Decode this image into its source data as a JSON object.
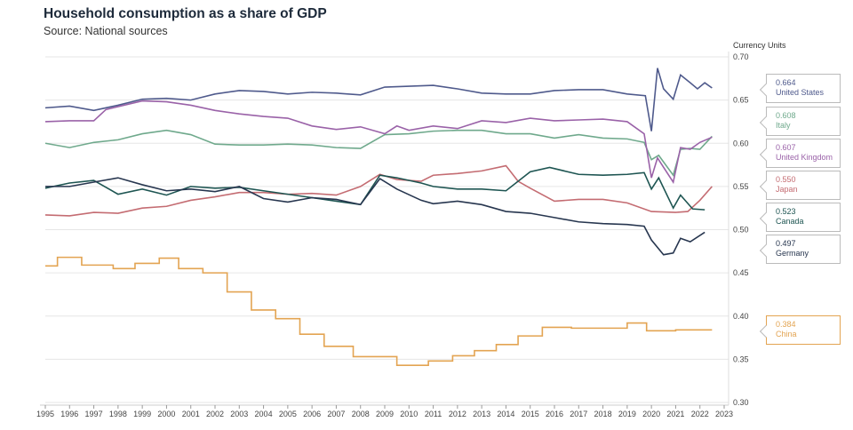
{
  "title": "Household consumption as a share of GDP",
  "subtitle": "Source: National sources",
  "chart_data": {
    "type": "line",
    "title": "Household consumption as a share of GDP",
    "yunit": "Currency Units",
    "ylim": [
      0.3,
      0.7
    ],
    "yticks": [
      "0.70",
      "0.65",
      "0.60",
      "0.55",
      "0.50",
      "0.45",
      "0.40",
      "0.35",
      "0.30"
    ],
    "xlim": [
      1995,
      2023
    ],
    "xticks": [
      "1995",
      "1996",
      "1997",
      "1998",
      "1999",
      "2000",
      "2001",
      "2002",
      "2003",
      "2004",
      "2005",
      "2006",
      "2007",
      "2008",
      "2009",
      "2010",
      "2011",
      "2012",
      "2013",
      "2014",
      "2015",
      "2016",
      "2017",
      "2018",
      "2019",
      "2020",
      "2021",
      "2022",
      "2023"
    ],
    "grid": true,
    "legend": "right end labels",
    "series": [
      {
        "name": "United States",
        "last": "0.664",
        "color": "#4f5a8c",
        "x": [
          1995,
          1996,
          1997,
          1998,
          1999,
          2000,
          2001,
          2002,
          2003,
          2004,
          2005,
          2006,
          2007,
          2008,
          2009,
          2010,
          2011,
          2012,
          2013,
          2014,
          2015,
          2016,
          2017,
          2018,
          2019,
          2019.75,
          2020,
          2020.25,
          2020.5,
          2020.9,
          2021.2,
          2021.6,
          2021.9,
          2022.2,
          2022.5
        ],
        "y": [
          0.641,
          0.643,
          0.638,
          0.644,
          0.651,
          0.652,
          0.65,
          0.657,
          0.661,
          0.66,
          0.657,
          0.659,
          0.658,
          0.656,
          0.665,
          0.666,
          0.667,
          0.663,
          0.658,
          0.657,
          0.657,
          0.661,
          0.662,
          0.662,
          0.657,
          0.655,
          0.614,
          0.687,
          0.663,
          0.651,
          0.679,
          0.67,
          0.663,
          0.67,
          0.664
        ]
      },
      {
        "name": "Italy",
        "last": "0.608",
        "color": "#6fa98c",
        "x": [
          1995,
          1996,
          1997,
          1998,
          1999,
          2000,
          2001,
          2002,
          2003,
          2004,
          2005,
          2006,
          2007,
          2008,
          2009,
          2010,
          2011,
          2012,
          2013,
          2014,
          2015,
          2016,
          2017,
          2018,
          2019,
          2019.7,
          2020,
          2020.3,
          2020.9,
          2021.2,
          2021.6,
          2022,
          2022.5
        ],
        "y": [
          0.6,
          0.595,
          0.601,
          0.604,
          0.611,
          0.615,
          0.61,
          0.599,
          0.598,
          0.598,
          0.599,
          0.598,
          0.595,
          0.594,
          0.61,
          0.611,
          0.614,
          0.615,
          0.615,
          0.611,
          0.611,
          0.606,
          0.61,
          0.606,
          0.605,
          0.601,
          0.581,
          0.586,
          0.563,
          0.593,
          0.594,
          0.593,
          0.608
        ]
      },
      {
        "name": "United Kingdom",
        "last": "0.607",
        "color": "#9a62a8",
        "x": [
          1995,
          1996,
          1997,
          1997.5,
          1999,
          2000,
          2001,
          2002,
          2003,
          2004,
          2005,
          2006,
          2007,
          2008,
          2009,
          2009.5,
          2010,
          2011,
          2012,
          2013,
          2014,
          2015,
          2016,
          2017,
          2018,
          2019,
          2019.7,
          2020,
          2020.25,
          2020.9,
          2021.2,
          2021.6,
          2022,
          2022.5
        ],
        "y": [
          0.625,
          0.626,
          0.626,
          0.639,
          0.649,
          0.648,
          0.644,
          0.638,
          0.634,
          0.631,
          0.629,
          0.62,
          0.616,
          0.619,
          0.611,
          0.62,
          0.615,
          0.62,
          0.617,
          0.626,
          0.624,
          0.629,
          0.626,
          0.627,
          0.628,
          0.625,
          0.611,
          0.56,
          0.583,
          0.555,
          0.595,
          0.593,
          0.601,
          0.607
        ]
      },
      {
        "name": "Japan",
        "last": "0.550",
        "color": "#c46c72",
        "x": [
          1995,
          1996,
          1997,
          1998,
          1999,
          2000,
          2001,
          2002,
          2003,
          2004,
          2005,
          2006,
          2007,
          2008,
          2008.8,
          2009.5,
          2010.5,
          2011,
          2012,
          2013,
          2014,
          2014.5,
          2015,
          2016,
          2017,
          2018,
          2019,
          2020,
          2021,
          2021.5,
          2022,
          2022.5
        ],
        "y": [
          0.517,
          0.516,
          0.52,
          0.519,
          0.525,
          0.527,
          0.534,
          0.538,
          0.543,
          0.543,
          0.541,
          0.542,
          0.54,
          0.55,
          0.564,
          0.558,
          0.556,
          0.563,
          0.565,
          0.568,
          0.574,
          0.556,
          0.548,
          0.533,
          0.535,
          0.535,
          0.531,
          0.521,
          0.52,
          0.521,
          0.534,
          0.55
        ]
      },
      {
        "name": "Canada",
        "last": "0.523",
        "color": "#1e5552",
        "x": [
          1995,
          1996,
          1997,
          1998,
          1999,
          2000,
          2001,
          2002,
          2003,
          2004,
          2005,
          2006,
          2007,
          2008,
          2008.8,
          2009.5,
          2010.5,
          2011,
          2012,
          2013,
          2014,
          2015,
          2015.8,
          2017,
          2018,
          2019,
          2019.7,
          2020,
          2020.3,
          2020.9,
          2021.2,
          2021.7,
          2022.2
        ],
        "y": [
          0.548,
          0.554,
          0.557,
          0.541,
          0.547,
          0.54,
          0.55,
          0.548,
          0.549,
          0.545,
          0.541,
          0.537,
          0.533,
          0.529,
          0.563,
          0.56,
          0.554,
          0.55,
          0.547,
          0.547,
          0.545,
          0.567,
          0.572,
          0.564,
          0.563,
          0.564,
          0.566,
          0.547,
          0.56,
          0.525,
          0.54,
          0.524,
          0.523
        ]
      },
      {
        "name": "Germany",
        "last": "0.497",
        "color": "#27364f",
        "x": [
          1995,
          1996,
          1997,
          1998,
          1999,
          2000,
          2001,
          2002,
          2003,
          2004,
          2005,
          2006,
          2007,
          2008,
          2008.8,
          2009.5,
          2010.5,
          2011,
          2012,
          2013,
          2014,
          2015,
          2016,
          2017,
          2018,
          2019,
          2019.7,
          2020,
          2020.5,
          2020.9,
          2021.2,
          2021.6,
          2022.2
        ],
        "y": [
          0.55,
          0.55,
          0.555,
          0.56,
          0.552,
          0.545,
          0.547,
          0.544,
          0.55,
          0.536,
          0.532,
          0.537,
          0.535,
          0.529,
          0.559,
          0.547,
          0.534,
          0.53,
          0.533,
          0.529,
          0.521,
          0.519,
          0.514,
          0.509,
          0.507,
          0.506,
          0.504,
          0.488,
          0.471,
          0.473,
          0.49,
          0.486,
          0.497
        ]
      },
      {
        "name": "China",
        "last": "0.384",
        "color": "#e3a452",
        "step": true,
        "x": [
          1995,
          1995.5,
          1996.5,
          1997.8,
          1998.7,
          1999.7,
          2000.5,
          2001.5,
          2002.5,
          2003.5,
          2004.5,
          2005.5,
          2006.5,
          2007.7,
          2009.5,
          2010.8,
          2011.8,
          2012.7,
          2013.6,
          2014.5,
          2015.5,
          2016.7,
          2018,
          2019,
          2019.8,
          2021,
          2022.5
        ],
        "y": [
          0.458,
          0.468,
          0.459,
          0.455,
          0.461,
          0.467,
          0.455,
          0.45,
          0.428,
          0.407,
          0.397,
          0.379,
          0.365,
          0.353,
          0.343,
          0.348,
          0.354,
          0.36,
          0.367,
          0.377,
          0.387,
          0.386,
          0.386,
          0.392,
          0.383,
          0.384,
          0.384
        ]
      }
    ]
  }
}
